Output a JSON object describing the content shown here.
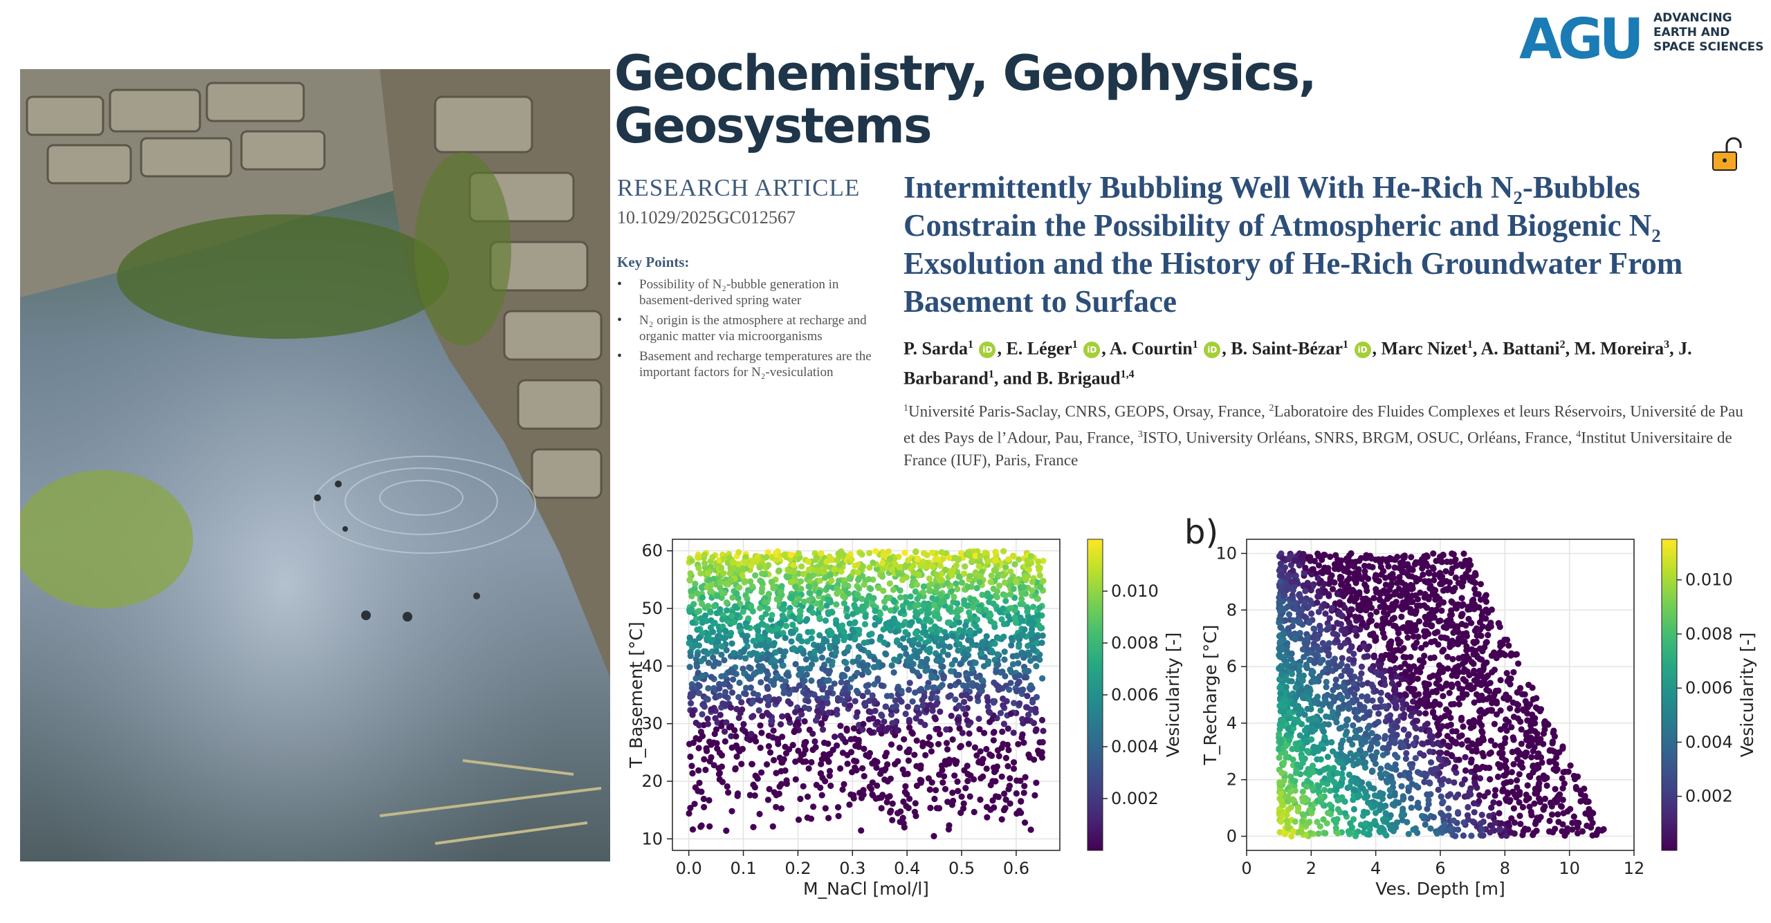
{
  "journal": {
    "line1": "Geochemistry, Geophysics,",
    "line2": "Geosystems"
  },
  "publisher": {
    "logo_text": "AGU",
    "tag_lines": [
      "ADVANCING",
      "EARTH AND",
      "SPACE SCIENCES"
    ]
  },
  "article": {
    "type": "RESEARCH ARTICLE",
    "doi": "10.1029/2025GC012567",
    "key_points_heading": "Key Points:",
    "key_points": [
      "Possibility of N₂-bubble generation in basement-derived spring water",
      "N₂ origin is the atmosphere at recharge and organic matter via microorganisms",
      "Basement and recharge temperatures are the important factors for N₂-vesiculation"
    ],
    "title": "Intermittently Bubbling Well With He-Rich N₂-Bubbles Constrain the Possibility of Atmospheric and Biogenic N₂ Exsolution and the History of He-Rich Groundwater From Basement to Surface",
    "authors": [
      {
        "name": "P. Sarda",
        "aff": "1",
        "orcid": true,
        "sep": ", "
      },
      {
        "name": "E. Léger",
        "aff": "1",
        "orcid": true,
        "sep": ", "
      },
      {
        "name": "A. Courtin",
        "aff": "1",
        "orcid": true,
        "sep": ", "
      },
      {
        "name": "B. Saint-Bézar",
        "aff": "1",
        "orcid": true,
        "sep": ", "
      },
      {
        "name": "Marc Nizet",
        "aff": "1",
        "orcid": false,
        "sep": ", "
      },
      {
        "name": "A. Battani",
        "aff": "2",
        "orcid": false,
        "sep": ", "
      },
      {
        "name": "M. Moreira",
        "aff": "3",
        "orcid": false,
        "sep": ", "
      },
      {
        "name": "J. Barbarand",
        "aff": "1",
        "orcid": false,
        "sep": ", and "
      },
      {
        "name": "B. Brigaud",
        "aff": "1,4",
        "orcid": false,
        "sep": ""
      }
    ],
    "affiliations": [
      {
        "num": "1",
        "text": "Université Paris-Saclay, CNRS, GEOPS, Orsay, France, "
      },
      {
        "num": "2",
        "text": "Laboratoire des Fluides Complexes et leurs Réservoirs, Université de Pau et des Pays de l’Adour, Pau, France, "
      },
      {
        "num": "3",
        "text": "ISTO, University Orléans, SNRS, BRGM, OSUC, Orléans, France, "
      },
      {
        "num": "4",
        "text": "Institut Universitaire de France (IUF), Paris, France"
      }
    ]
  },
  "icons": {
    "lock": "open-lock-icon",
    "orcid": "orcid-icon"
  },
  "colors": {
    "title": "#2c4e79",
    "journal": "#1f3549",
    "agu_blue": "#1a7bb5",
    "orcid": "#a6ce39",
    "lock": "#f5a623"
  },
  "chart_data": [
    {
      "type": "scatter",
      "title": "",
      "xlabel": "M_NaCl [mol/l]",
      "ylabel": "T_Basement [°C]",
      "xlim": [
        -0.03,
        0.68
      ],
      "ylim": [
        8,
        62
      ],
      "xticks": [
        "0.0",
        "0.1",
        "0.2",
        "0.3",
        "0.4",
        "0.5",
        "0.6"
      ],
      "yticks": [
        "10",
        "20",
        "30",
        "40",
        "50",
        "60"
      ],
      "grid": true,
      "colorbar": {
        "label": "Vesicularity [-]",
        "ticks": [
          "0.002",
          "0.004",
          "0.006",
          "0.008",
          "0.010"
        ],
        "range": [
          0.0,
          0.012
        ],
        "colormap": "viridis"
      },
      "description_of_data": "Dense uniform cloud of points for x 0.0–0.65; colour increases with temperature: purple below ~35, teal 40–45, green-yellow 50–60",
      "x_range": [
        0.0,
        0.65
      ],
      "y_range": [
        10,
        60
      ]
    },
    {
      "type": "scatter",
      "panel_label": "b)",
      "xlabel": "Ves. Depth [m]",
      "ylabel": "T_Recharge [°C]",
      "xlim": [
        0,
        12
      ],
      "ylim": [
        -0.5,
        10.5
      ],
      "xticks": [
        "0",
        "2",
        "4",
        "6",
        "8",
        "10",
        "12"
      ],
      "yticks": [
        "0",
        "2",
        "4",
        "6",
        "8",
        "10"
      ],
      "grid": true,
      "colorbar": {
        "label": "Vesicularity [-]",
        "ticks": [
          "0.002",
          "0.004",
          "0.006",
          "0.008",
          "0.010"
        ],
        "range": [
          0.0,
          0.0115
        ],
        "colormap": "viridis"
      },
      "x_range": [
        1,
        11.2
      ],
      "y_range": [
        0,
        10
      ]
    }
  ]
}
